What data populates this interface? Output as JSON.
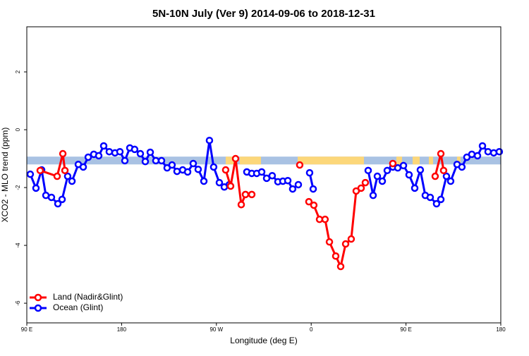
{
  "chart_data": {
    "type": "line",
    "title": "5N-10N July (Ver 9)   2014-09-06 to 2018-12-31",
    "xlabel": "Longitude (deg E)",
    "ylabel": "XCO2 - MLO trend (ppm)",
    "xlim": [
      90,
      540
    ],
    "ylim": [
      -6.68,
      3.56
    ],
    "xticks": [
      {
        "value": 90,
        "label": "90 E"
      },
      180,
      {
        "value": 270,
        "label": "90 W"
      },
      {
        "value": 360,
        "label": "0"
      },
      {
        "value": 450,
        "label": "90 E"
      },
      {
        "value": 540,
        "label": "180"
      }
    ],
    "yticks": [
      -6,
      -4,
      -2,
      0,
      2
    ],
    "reference_band": [
      -1.2,
      -0.93
    ],
    "legend": "bottom-left",
    "series": [
      {
        "name": "Ocean (Glint)",
        "color": "#0000ff",
        "x": [
          93.3,
          98.7,
          104.1,
          108.1,
          113.4,
          119.5,
          123.5,
          128.8,
          132.9,
          138.9,
          143.6,
          148.3,
          153.6,
          158.3,
          163.0,
          168.3,
          173.7,
          178.4,
          183.1,
          187.8,
          192.4,
          197.8,
          202.5,
          207.2,
          212.5,
          217.9,
          223.2,
          227.9,
          232.6,
          238.0,
          242.7,
          248.0,
          252.7,
          258.1,
          263.4,
          267.4,
          272.8,
          277.5,
          282.2,
          null,
          298.9,
          303.6,
          308.3,
          313.0,
          317.7,
          323.0,
          328.4,
          333.1,
          337.8,
          342.4,
          347.8,
          null,
          358.5,
          361.9,
          null,
          414.1,
          418.8,
          422.8,
          427.5,
          432.2,
          437.5,
          442.2,
          447.6,
          452.9,
          458.3,
          463.6,
          468.3,
          473.0,
          479.0,
          483.1,
          488.4,
          492.4,
          498.5,
          503.1,
          507.8,
          512.5,
          517.9,
          522.6,
          527.9,
          533.3,
          538.6
        ],
        "values": [
          -1.54,
          -2.02,
          -1.39,
          -2.27,
          -2.34,
          -2.56,
          -2.41,
          -1.61,
          -1.78,
          -1.2,
          -1.29,
          -0.95,
          -0.85,
          -0.9,
          -0.56,
          -0.76,
          -0.8,
          -0.76,
          -1.07,
          -0.63,
          -0.68,
          -0.83,
          -1.1,
          -0.78,
          -1.07,
          -1.07,
          -1.32,
          -1.22,
          -1.44,
          -1.39,
          -1.46,
          -1.17,
          -1.37,
          -1.78,
          -0.37,
          -1.29,
          -1.83,
          -1.98,
          -1.9,
          null,
          -1.46,
          -1.51,
          -1.51,
          -1.46,
          -1.68,
          -1.59,
          -1.8,
          -1.78,
          -1.76,
          -2.05,
          -1.9,
          null,
          -1.49,
          -2.05,
          null,
          -1.41,
          -2.27,
          -1.61,
          -1.78,
          -1.41,
          -1.29,
          -1.32,
          -1.24,
          -1.56,
          -2.02,
          -1.39,
          -2.27,
          -2.34,
          -2.56,
          -2.41,
          -1.61,
          -1.78,
          -1.2,
          -1.29,
          -0.95,
          -0.85,
          -0.9,
          -0.56,
          -0.76,
          -0.8,
          -0.76
        ]
      },
      {
        "name": "Land (Nadir&Glint)",
        "color": "#ff0000",
        "x": [
          102.7,
          118.8,
          124.2,
          126.2,
          null,
          278.8,
          283.5,
          288.2,
          293.6,
          297.6,
          303.6,
          null,
          349.1,
          null,
          357.8,
          362.5,
          367.9,
          373.2,
          377.3,
          383.3,
          388.0,
          392.7,
          398.0,
          402.7,
          407.4,
          411.4,
          null,
          437.5,
          null,
          477.7,
          483.1,
          485.7
        ],
        "values": [
          -1.41,
          -1.61,
          -0.83,
          -1.41,
          null,
          -1.39,
          -1.95,
          -1.0,
          -2.59,
          -2.24,
          -2.24,
          null,
          -1.22,
          null,
          -2.49,
          -2.61,
          -3.1,
          -3.1,
          -3.88,
          -4.37,
          -4.73,
          -3.95,
          -3.78,
          -2.12,
          -2.02,
          -1.83,
          null,
          -1.17,
          null,
          -1.61,
          -0.83,
          -1.41
        ]
      }
    ]
  }
}
